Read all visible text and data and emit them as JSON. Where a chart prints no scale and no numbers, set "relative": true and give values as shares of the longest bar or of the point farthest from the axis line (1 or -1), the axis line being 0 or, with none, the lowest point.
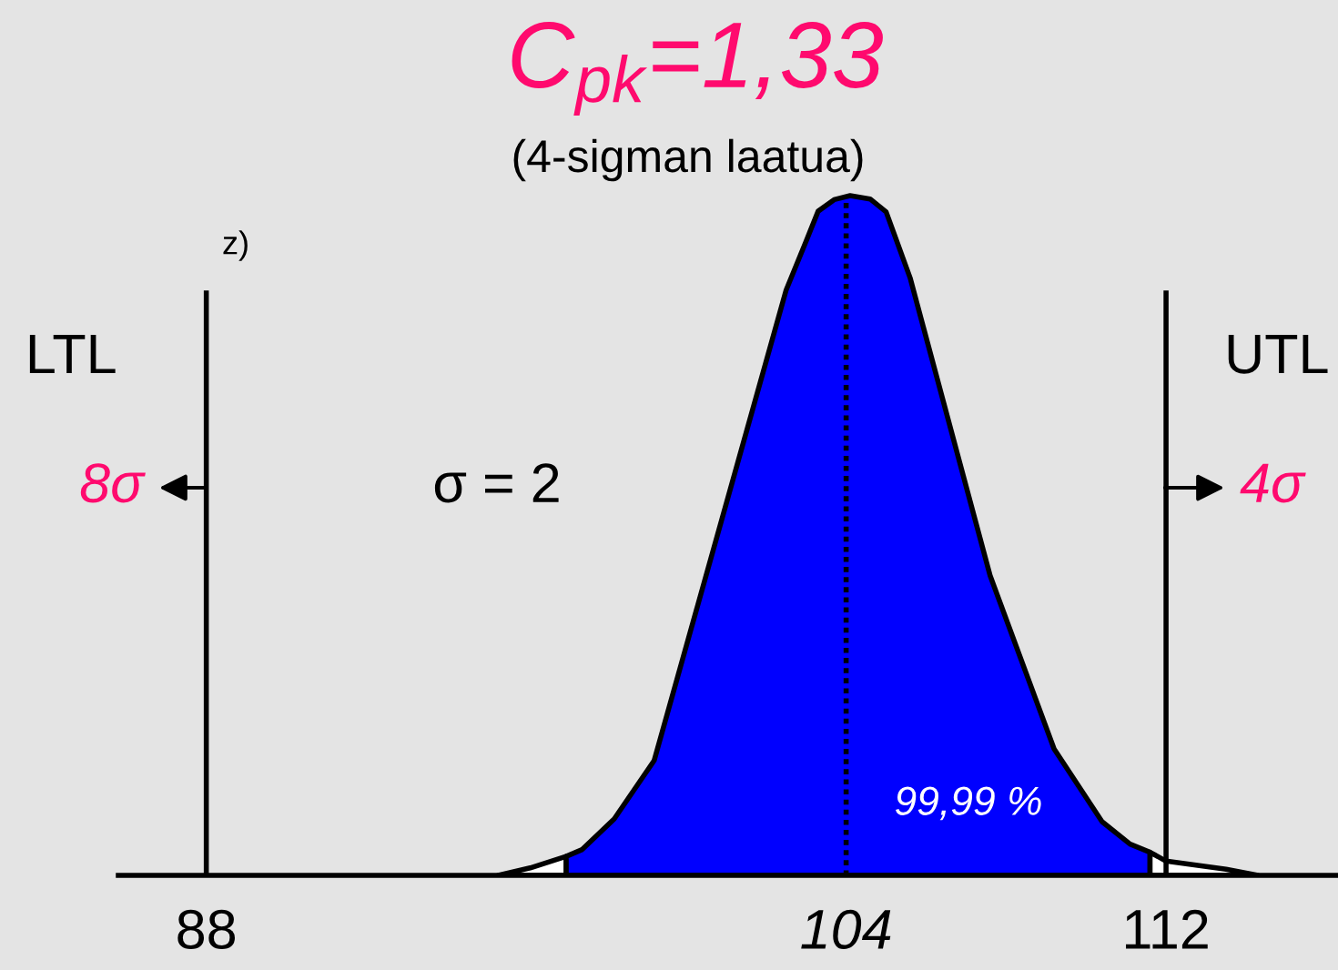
{
  "chart_data": {
    "type": "area",
    "title": "C$_{pk}$=1,33",
    "subtitle": "(4-sigman laatua)",
    "relative": true,
    "xlim": [
      85.8,
      116.3
    ],
    "xticks": [
      88,
      104,
      112
    ],
    "series": [
      {
        "color": "#ffffff",
        "x": [
          95.3,
          96.1,
          97.0
        ],
        "values": [
          0,
          0.011,
          0.028
        ]
      },
      {
        "color": "#0000ff",
        "x": [
          97.0,
          97.4,
          98.2,
          99.2,
          102.5,
          103.0,
          103.3,
          103.7,
          104.1,
          104.6,
          105.0,
          105.6,
          107.6,
          109.2,
          110.4,
          111.1,
          111.6
        ],
        "values": [
          0.028,
          0.038,
          0.083,
          0.169,
          0.861,
          0.933,
          0.977,
          0.994,
          1,
          0.995,
          0.976,
          0.879,
          0.441,
          0.186,
          0.079,
          0.046,
          0.034
        ]
      },
      {
        "color": "#ffffff",
        "x": [
          111.6,
          112.0,
          113.5,
          114.3
        ],
        "values": [
          0.034,
          0.021,
          0.009,
          0
        ]
      }
    ],
    "ref_lines": [
      {
        "axis": "x",
        "value": 88,
        "label": "LTL"
      },
      {
        "axis": "x",
        "value": 112,
        "label": "UTL"
      },
      {
        "axis": "x",
        "value": 104,
        "line_style": "dotted"
      }
    ],
    "annotations": [
      "z)",
      "8σ",
      "4σ",
      "σ = 2",
      "99,99 %"
    ]
  }
}
